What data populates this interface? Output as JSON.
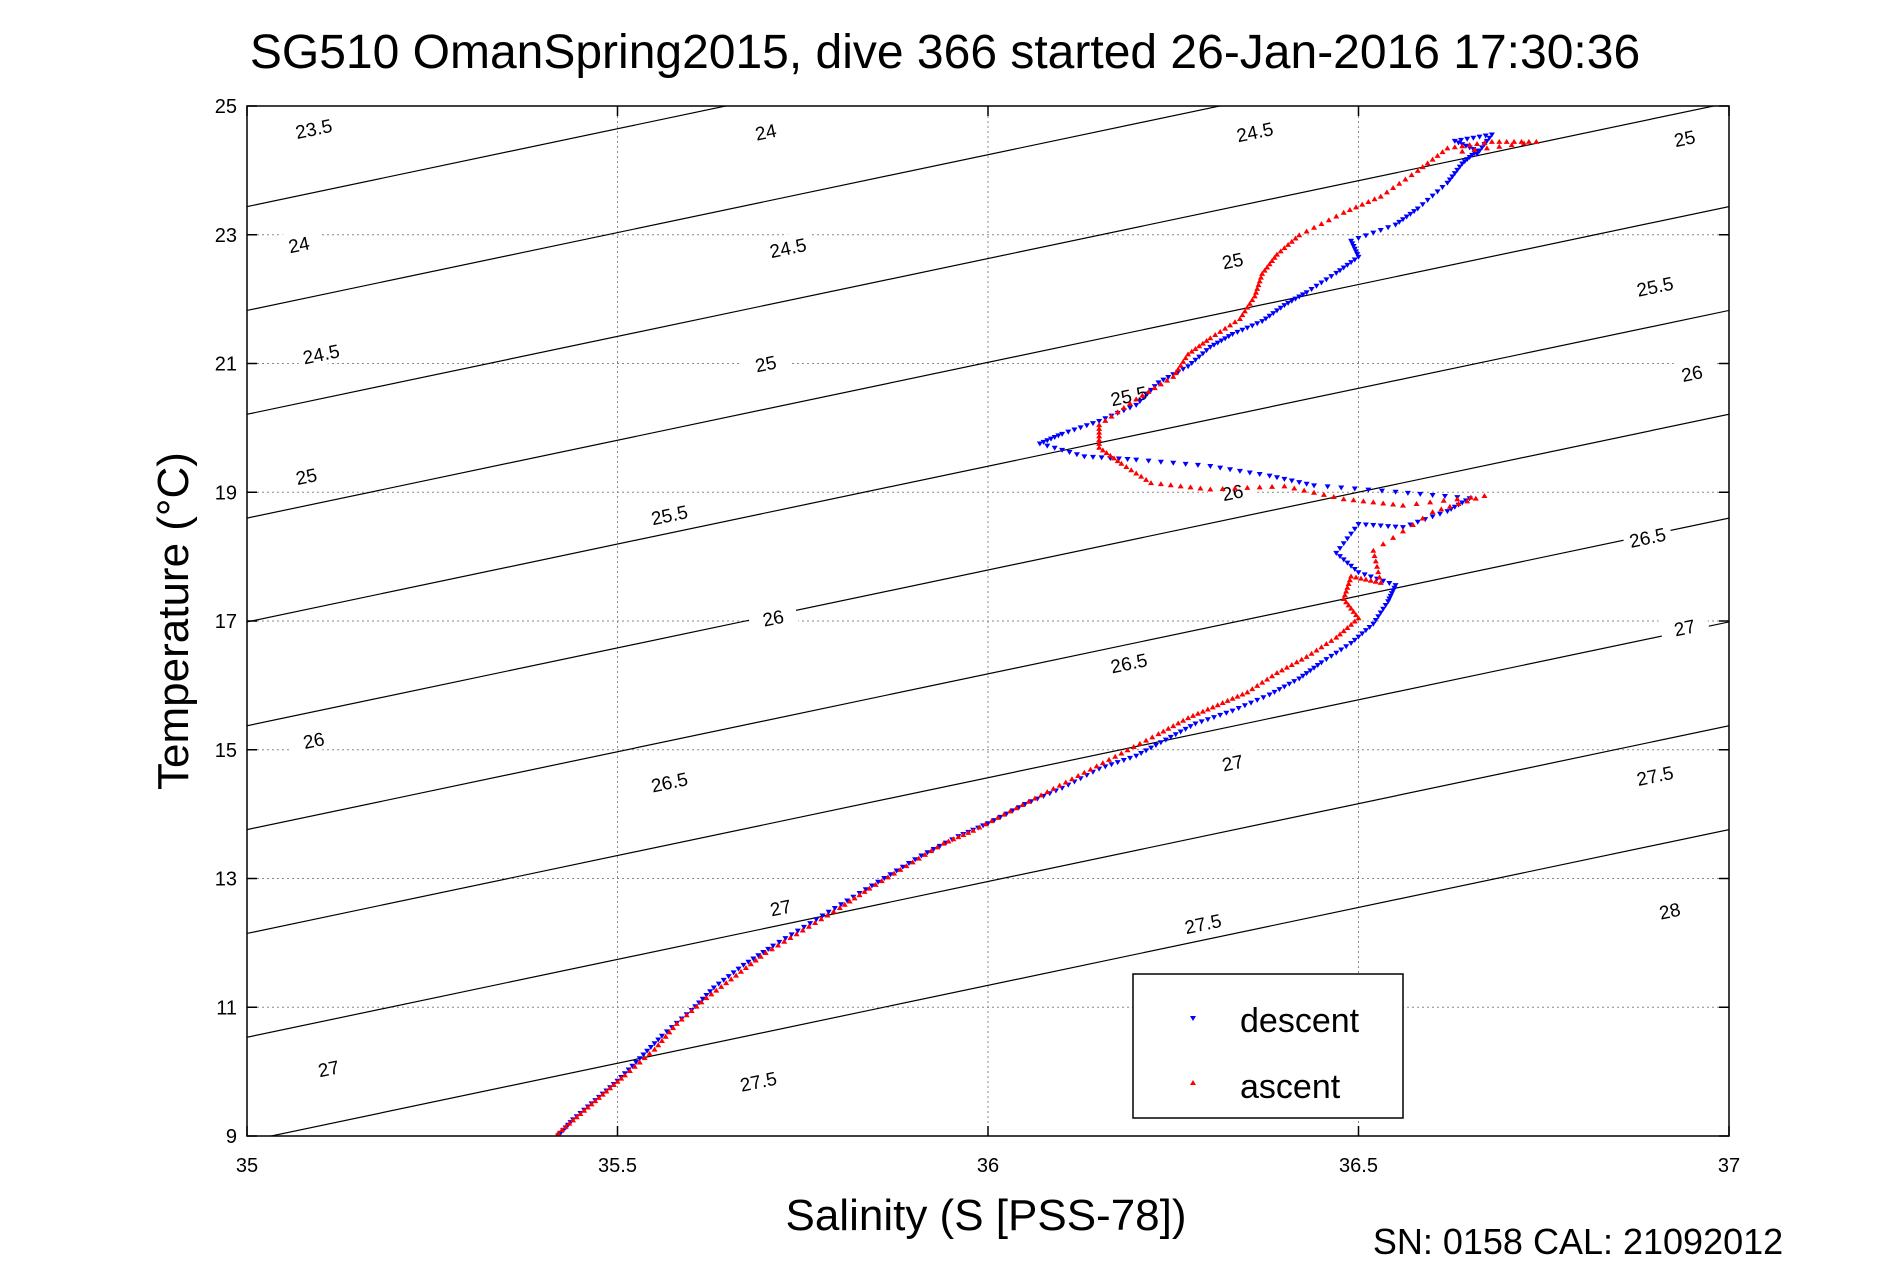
{
  "chart_data": {
    "type": "scatter",
    "title": "SG510 OmanSpring2015, dive 366 started 26-Jan-2016 17:30:36",
    "xlabel": "Salinity (S [PSS-78])",
    "ylabel": "Temperature (°C)",
    "footer": "SN: 0158  CAL: 21092012",
    "xlim": [
      35,
      37
    ],
    "ylim": [
      9,
      25
    ],
    "xticks": [
      35,
      35.5,
      36,
      36.5,
      37
    ],
    "xtick_labels": [
      "35",
      "35.5",
      "36",
      "36.5",
      "37"
    ],
    "yticks": [
      9,
      11,
      13,
      15,
      17,
      19,
      21,
      23,
      25
    ],
    "ytick_labels": [
      "9",
      "11",
      "13",
      "15",
      "17",
      "19",
      "21",
      "23",
      "25"
    ],
    "grid": true,
    "legend": {
      "position": "bottom-right",
      "entries": [
        "descent",
        "ascent"
      ]
    },
    "colors": {
      "descent": "#0000ff",
      "ascent": "#ff0000",
      "contour": "#000000",
      "grid": "#888888"
    },
    "contours": [
      {
        "value": 23.5,
        "label": "23.5"
      },
      {
        "value": 24,
        "label": "24"
      },
      {
        "value": 24.5,
        "label": "24.5"
      },
      {
        "value": 25,
        "label": "25"
      },
      {
        "value": 25.5,
        "label": "25.5"
      },
      {
        "value": 26,
        "label": "26"
      },
      {
        "value": 26.5,
        "label": "26.5"
      },
      {
        "value": 27,
        "label": "27"
      },
      {
        "value": 27.5,
        "label": "27.5"
      },
      {
        "value": 28,
        "label": "28"
      }
    ],
    "contour_labels": [
      {
        "text": "23.5",
        "s": 35.09,
        "t": 24.65
      },
      {
        "text": "24",
        "s": 35.07,
        "t": 22.85
      },
      {
        "text": "24.5",
        "s": 35.1,
        "t": 21.15
      },
      {
        "text": "25",
        "s": 35.08,
        "t": 19.25
      },
      {
        "text": "26",
        "s": 35.09,
        "t": 15.15
      },
      {
        "text": "27",
        "s": 35.11,
        "t": 10.05
      },
      {
        "text": "24",
        "s": 35.7,
        "t": 24.6
      },
      {
        "text": "24.5",
        "s": 35.73,
        "t": 22.8
      },
      {
        "text": "25",
        "s": 35.7,
        "t": 21.0
      },
      {
        "text": "25.5",
        "s": 35.57,
        "t": 18.65
      },
      {
        "text": "26",
        "s": 35.71,
        "t": 17.05
      },
      {
        "text": "26.5",
        "s": 35.57,
        "t": 14.5
      },
      {
        "text": "27",
        "s": 35.72,
        "t": 12.55
      },
      {
        "text": "27.5",
        "s": 35.69,
        "t": 9.85
      },
      {
        "text": "24.5",
        "s": 36.36,
        "t": 24.6
      },
      {
        "text": "25",
        "s": 36.33,
        "t": 22.6
      },
      {
        "text": "25.5",
        "s": 36.19,
        "t": 20.5
      },
      {
        "text": "26",
        "s": 36.33,
        "t": 19.0
      },
      {
        "text": "26.5",
        "s": 36.19,
        "t": 16.35
      },
      {
        "text": "27",
        "s": 36.33,
        "t": 14.8
      },
      {
        "text": "27.5",
        "s": 36.29,
        "t": 12.3
      },
      {
        "text": "25",
        "s": 36.94,
        "t": 24.5
      },
      {
        "text": "25.5",
        "s": 36.9,
        "t": 22.2
      },
      {
        "text": "26",
        "s": 36.95,
        "t": 20.85
      },
      {
        "text": "26.5",
        "s": 36.89,
        "t": 18.3
      },
      {
        "text": "27",
        "s": 36.94,
        "t": 16.9
      },
      {
        "text": "27.5",
        "s": 36.9,
        "t": 14.6
      },
      {
        "text": "28",
        "s": 36.92,
        "t": 12.5
      }
    ],
    "series": [
      {
        "name": "descent",
        "marker": "triangle-down",
        "points": [
          [
            35.42,
            9.0
          ],
          [
            35.44,
            9.25
          ],
          [
            35.47,
            9.55
          ],
          [
            35.5,
            9.85
          ],
          [
            35.53,
            10.2
          ],
          [
            35.56,
            10.55
          ],
          [
            35.6,
            10.95
          ],
          [
            35.63,
            11.3
          ],
          [
            35.67,
            11.65
          ],
          [
            35.71,
            11.95
          ],
          [
            35.76,
            12.3
          ],
          [
            35.81,
            12.65
          ],
          [
            35.86,
            13.0
          ],
          [
            35.91,
            13.35
          ],
          [
            35.96,
            13.65
          ],
          [
            36.0,
            13.85
          ],
          [
            36.05,
            14.15
          ],
          [
            36.1,
            14.4
          ],
          [
            36.15,
            14.7
          ],
          [
            36.2,
            14.9
          ],
          [
            36.24,
            15.15
          ],
          [
            36.28,
            15.4
          ],
          [
            36.33,
            15.6
          ],
          [
            36.38,
            15.85
          ],
          [
            36.42,
            16.1
          ],
          [
            36.45,
            16.35
          ],
          [
            36.49,
            16.65
          ],
          [
            36.52,
            16.95
          ],
          [
            36.54,
            17.3
          ],
          [
            36.55,
            17.55
          ],
          [
            36.5,
            17.75
          ],
          [
            36.47,
            18.05
          ],
          [
            36.5,
            18.5
          ],
          [
            36.56,
            18.45
          ],
          [
            36.62,
            18.7
          ],
          [
            36.65,
            18.9
          ],
          [
            36.55,
            19.0
          ],
          [
            36.44,
            19.1
          ],
          [
            36.38,
            19.25
          ],
          [
            36.3,
            19.4
          ],
          [
            36.2,
            19.5
          ],
          [
            36.13,
            19.55
          ],
          [
            36.07,
            19.75
          ],
          [
            36.1,
            19.9
          ],
          [
            36.15,
            20.1
          ],
          [
            36.2,
            20.35
          ],
          [
            36.23,
            20.7
          ],
          [
            36.27,
            20.95
          ],
          [
            36.3,
            21.25
          ],
          [
            36.33,
            21.45
          ],
          [
            36.37,
            21.65
          ],
          [
            36.4,
            21.9
          ],
          [
            36.43,
            22.1
          ],
          [
            36.47,
            22.4
          ],
          [
            36.5,
            22.65
          ],
          [
            36.49,
            22.9
          ],
          [
            36.55,
            23.15
          ],
          [
            36.58,
            23.4
          ],
          [
            36.62,
            23.8
          ],
          [
            36.64,
            24.1
          ],
          [
            36.66,
            24.3
          ],
          [
            36.63,
            24.45
          ],
          [
            36.68,
            24.55
          ],
          [
            36.66,
            24.25
          ]
        ]
      },
      {
        "name": "ascent",
        "marker": "triangle-up",
        "points": [
          [
            35.42,
            9.05
          ],
          [
            35.45,
            9.35
          ],
          [
            35.48,
            9.65
          ],
          [
            35.51,
            9.95
          ],
          [
            35.55,
            10.35
          ],
          [
            35.58,
            10.75
          ],
          [
            35.62,
            11.15
          ],
          [
            35.66,
            11.5
          ],
          [
            35.7,
            11.85
          ],
          [
            35.75,
            12.2
          ],
          [
            35.8,
            12.55
          ],
          [
            35.84,
            12.85
          ],
          [
            35.89,
            13.2
          ],
          [
            35.94,
            13.55
          ],
          [
            35.98,
            13.75
          ],
          [
            36.03,
            14.05
          ],
          [
            36.08,
            14.35
          ],
          [
            36.13,
            14.65
          ],
          [
            36.18,
            14.95
          ],
          [
            36.23,
            15.25
          ],
          [
            36.27,
            15.5
          ],
          [
            36.31,
            15.7
          ],
          [
            36.35,
            15.9
          ],
          [
            36.39,
            16.2
          ],
          [
            36.43,
            16.45
          ],
          [
            36.47,
            16.75
          ],
          [
            36.5,
            17.05
          ],
          [
            36.48,
            17.35
          ],
          [
            36.49,
            17.7
          ],
          [
            36.53,
            17.6
          ],
          [
            36.52,
            18.1
          ],
          [
            36.6,
            18.7
          ],
          [
            36.67,
            18.95
          ],
          [
            36.56,
            18.8
          ],
          [
            36.48,
            18.9
          ],
          [
            36.4,
            19.1
          ],
          [
            36.3,
            19.05
          ],
          [
            36.22,
            19.15
          ],
          [
            36.18,
            19.45
          ],
          [
            36.15,
            19.7
          ],
          [
            36.15,
            20.05
          ],
          [
            36.2,
            20.45
          ],
          [
            36.25,
            20.8
          ],
          [
            36.27,
            21.15
          ],
          [
            36.3,
            21.4
          ],
          [
            36.34,
            21.7
          ],
          [
            36.36,
            22.05
          ],
          [
            36.37,
            22.4
          ],
          [
            36.39,
            22.7
          ],
          [
            36.42,
            23.0
          ],
          [
            36.48,
            23.35
          ],
          [
            36.53,
            23.6
          ],
          [
            36.58,
            24.0
          ],
          [
            36.62,
            24.35
          ],
          [
            36.68,
            24.45
          ],
          [
            36.74,
            24.45
          ],
          [
            36.64,
            24.3
          ]
        ]
      }
    ]
  }
}
